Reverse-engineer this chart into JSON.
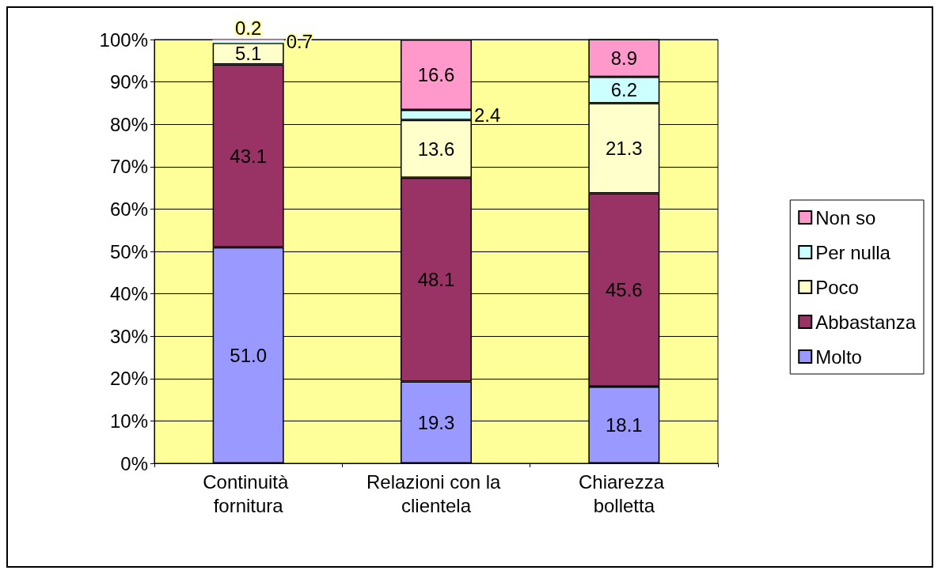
{
  "chart_data": {
    "type": "bar",
    "stacked": true,
    "categories": [
      "Continuità fornitura",
      "Relazioni con la clientela",
      "Chiarezza bolletta"
    ],
    "series": [
      {
        "name": "Molto",
        "color": "#9999ff",
        "values": [
          51.0,
          19.3,
          18.1
        ],
        "value_labels": [
          "51.0",
          "19.3",
          "18.1"
        ]
      },
      {
        "name": "Abbastanza",
        "color": "#993366",
        "values": [
          43.1,
          48.1,
          45.6
        ],
        "value_labels": [
          "43.1",
          "48.1",
          "45.6"
        ]
      },
      {
        "name": "Poco",
        "color": "#ffffcc",
        "values": [
          5.1,
          13.6,
          21.3
        ],
        "value_labels": [
          "5.1",
          "13.6",
          "21.3"
        ]
      },
      {
        "name": "Per nulla",
        "color": "#ccffff",
        "values": [
          0.7,
          2.4,
          6.2
        ],
        "value_labels": [
          "0.7",
          "2.4",
          "6.2"
        ]
      },
      {
        "name": "Non so",
        "color": "#ff99cc",
        "values": [
          0.2,
          16.6,
          8.9
        ],
        "value_labels": [
          "0.2",
          "16.6",
          "8.9"
        ]
      }
    ],
    "ylim": [
      0,
      100
    ],
    "yticks": [
      {
        "value": 0,
        "label": "0%"
      },
      {
        "value": 10,
        "label": "10%"
      },
      {
        "value": 20,
        "label": "20%"
      },
      {
        "value": 30,
        "label": "30%"
      },
      {
        "value": 40,
        "label": "40%"
      },
      {
        "value": 50,
        "label": "50%"
      },
      {
        "value": 60,
        "label": "60%"
      },
      {
        "value": 70,
        "label": "70%"
      },
      {
        "value": 80,
        "label": "80%"
      },
      {
        "value": 90,
        "label": "90%"
      },
      {
        "value": 100,
        "label": "100%"
      }
    ],
    "grid": "y",
    "legend": "right"
  }
}
